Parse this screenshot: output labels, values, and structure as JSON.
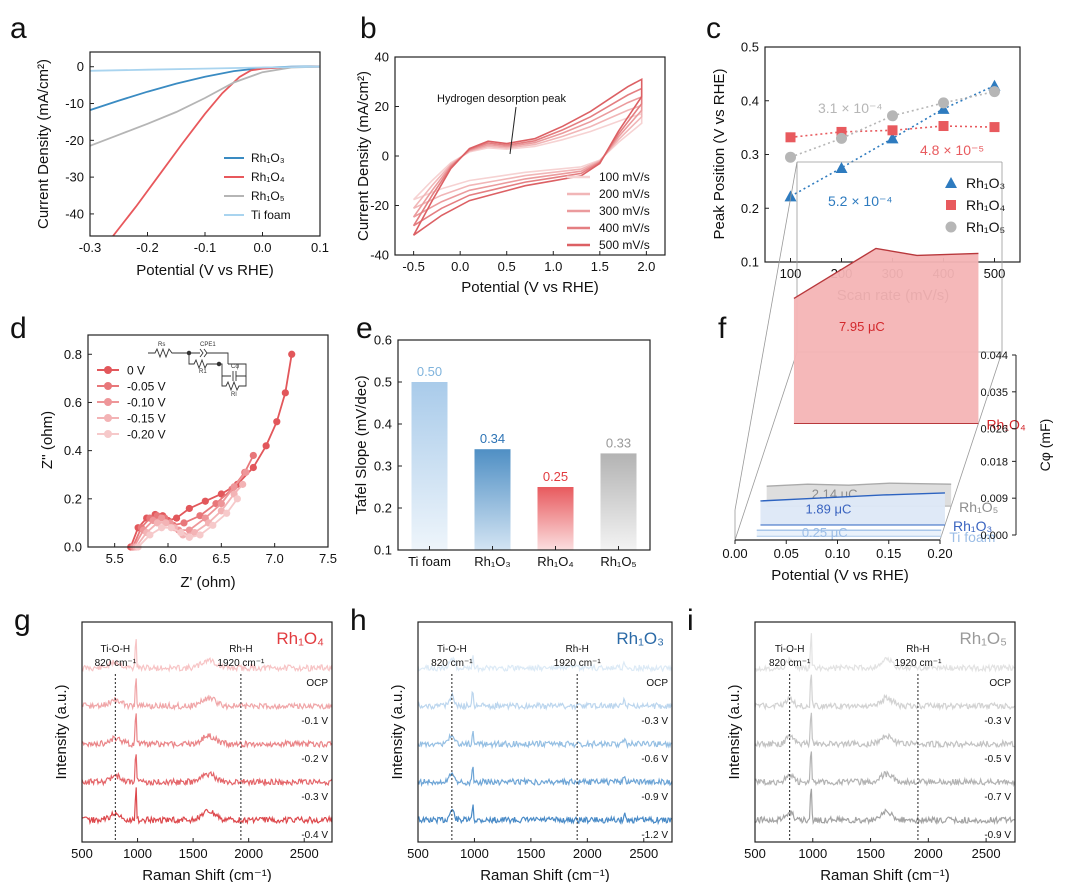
{
  "chart_data": [
    {
      "id": "a",
      "letter": "a",
      "type": "line",
      "xlabel": "Potential (V vs RHE)",
      "ylabel": "Current Density (mA/cm²)",
      "xlim": [
        -0.3,
        0.1
      ],
      "ylim": [
        -46,
        4
      ],
      "xticks": [
        -0.3,
        -0.2,
        -0.1,
        0.0,
        0.1
      ],
      "xtick_labels": [
        "-0.3",
        "-0.2",
        "-0.1",
        "0.0",
        "0.1"
      ],
      "yticks": [
        0,
        -10,
        -20,
        -30,
        -40
      ],
      "ytick_labels": [
        "0",
        "-10",
        "-20",
        "-30",
        "-40"
      ],
      "legend_position": "bottom-right",
      "series": [
        {
          "name": "Rh₁O₃",
          "color": "#3a8bc2",
          "x": [
            -0.3,
            -0.25,
            -0.2,
            -0.15,
            -0.1,
            -0.05,
            0.0,
            0.05,
            0.1
          ],
          "y": [
            -11.8,
            -9.2,
            -6.8,
            -4.6,
            -2.7,
            -1.2,
            -0.3,
            0.0,
            0.1
          ]
        },
        {
          "name": "Rh₁O₄",
          "color": "#e8585c",
          "x": [
            -0.26,
            -0.22,
            -0.18,
            -0.14,
            -0.1,
            -0.07,
            -0.04,
            -0.02,
            0.0,
            0.05,
            0.1
          ],
          "y": [
            -46,
            -38,
            -29.5,
            -21,
            -12.8,
            -7.2,
            -2.8,
            -1.0,
            -0.5,
            -0.1,
            0.0
          ]
        },
        {
          "name": "Rh₁O₅",
          "color": "#b5b5b5",
          "x": [
            -0.3,
            -0.25,
            -0.2,
            -0.15,
            -0.1,
            -0.05,
            0.0,
            0.05,
            0.1
          ],
          "y": [
            -21.5,
            -18.5,
            -15.5,
            -12.3,
            -8.5,
            -4.3,
            -1.5,
            -0.2,
            0.0
          ]
        },
        {
          "name": "Ti foam",
          "color": "#a9d4ef",
          "x": [
            -0.3,
            -0.2,
            -0.1,
            0.0,
            0.1
          ],
          "y": [
            -1.1,
            -0.8,
            -0.5,
            -0.2,
            0.0
          ]
        }
      ]
    },
    {
      "id": "b",
      "letter": "b",
      "type": "line",
      "xlabel": "Potential (V vs RHE)",
      "ylabel": "Current Density (mA/cm²)",
      "xlim": [
        -0.7,
        2.2
      ],
      "ylim": [
        -40,
        40
      ],
      "xticks": [
        -0.5,
        0.0,
        0.5,
        1.0,
        1.5,
        2.0
      ],
      "xtick_labels": [
        "-0.5",
        "0.0",
        "0.5",
        "1.0",
        "1.5",
        "2.0"
      ],
      "yticks": [
        -40,
        -20,
        0,
        20,
        40
      ],
      "ytick_labels": [
        "-40",
        "-20",
        "0",
        "20",
        "40"
      ],
      "annotation": "Hydrogen desorption peak",
      "legend_position": "bottom-right",
      "series": [
        {
          "name": "100 mV/s",
          "color": "#f6d2d2",
          "scale": 0.55
        },
        {
          "name": "200 mV/s",
          "color": "#f1b6b7",
          "scale": 0.66
        },
        {
          "name": "300 mV/s",
          "color": "#eb9b9d",
          "scale": 0.77
        },
        {
          "name": "400 mV/s",
          "color": "#e47e81",
          "scale": 0.88
        },
        {
          "name": "500 mV/s",
          "color": "#dc6064",
          "scale": 1.0
        }
      ]
    },
    {
      "id": "c",
      "letter": "c",
      "type": "scatter",
      "xlabel": "Scan rate (mV/s)",
      "ylabel": "Peak Position (V vs RHE)",
      "xlim": [
        50,
        550
      ],
      "ylim": [
        0.1,
        0.5
      ],
      "xticks": [
        100,
        200,
        300,
        400,
        500
      ],
      "xtick_labels": [
        "100",
        "200",
        "300",
        "400",
        "500"
      ],
      "yticks": [
        0.1,
        0.2,
        0.3,
        0.4,
        0.5
      ],
      "ytick_labels": [
        "0.1",
        "0.2",
        "0.3",
        "0.4",
        "0.5"
      ],
      "legend_position": "bottom-right",
      "x": [
        100,
        200,
        300,
        400,
        500
      ],
      "series": [
        {
          "name": "Rh₁O₃",
          "color": "#2e7bbf",
          "marker": "triangle",
          "y": [
            0.222,
            0.275,
            0.33,
            0.385,
            0.428
          ],
          "slope": "5.2 × 10⁻⁴"
        },
        {
          "name": "Rh₁O₄",
          "color": "#e85a5e",
          "marker": "square",
          "y": [
            0.332,
            0.342,
            0.345,
            0.353,
            0.351
          ],
          "slope": "4.8 × 10⁻⁵"
        },
        {
          "name": "Rh₁O₅",
          "color": "#b6b6b6",
          "marker": "circle",
          "y": [
            0.295,
            0.33,
            0.372,
            0.396,
            0.417
          ],
          "slope": "3.1 × 10⁻⁴"
        }
      ]
    },
    {
      "id": "d",
      "letter": "d",
      "type": "line",
      "xlabel": "Z' (ohm)",
      "ylabel": "Z'' (ohm)",
      "xlim": [
        5.25,
        7.5
      ],
      "ylim": [
        0.0,
        0.88
      ],
      "xticks": [
        5.5,
        6.0,
        6.5,
        7.0,
        7.5
      ],
      "xtick_labels": [
        "5.5",
        "6.0",
        "6.5",
        "7.0",
        "7.5"
      ],
      "yticks": [
        0.0,
        0.2,
        0.4,
        0.6,
        0.8
      ],
      "ytick_labels": [
        "0.0",
        "0.2",
        "0.4",
        "0.6",
        "0.8"
      ],
      "circuit_labels": [
        "Rs",
        "CPE1",
        "R1",
        "Cφ",
        "Rl"
      ],
      "legend_position": "top-left",
      "series": [
        {
          "name": "0 V",
          "color": "#e2575b",
          "x": [
            5.65,
            5.72,
            5.8,
            5.88,
            5.95,
            6.0,
            6.08,
            6.2,
            6.35,
            6.5,
            6.65,
            6.8,
            6.92,
            7.02,
            7.1,
            7.16
          ],
          "y": [
            0.0,
            0.08,
            0.12,
            0.135,
            0.13,
            0.11,
            0.12,
            0.16,
            0.19,
            0.22,
            0.26,
            0.33,
            0.42,
            0.52,
            0.64,
            0.8
          ]
        },
        {
          "name": "-0.05 V",
          "color": "#e8777a",
          "x": [
            5.67,
            5.75,
            5.83,
            5.9,
            5.97,
            6.05,
            6.15,
            6.3,
            6.45,
            6.6,
            6.72,
            6.8
          ],
          "y": [
            0.0,
            0.08,
            0.12,
            0.13,
            0.12,
            0.09,
            0.1,
            0.13,
            0.18,
            0.24,
            0.31,
            0.38
          ]
        },
        {
          "name": "-0.10 V",
          "color": "#ee9699",
          "x": [
            5.68,
            5.77,
            5.86,
            5.94,
            6.02,
            6.1,
            6.2,
            6.35,
            6.5,
            6.62,
            6.73
          ],
          "y": [
            0.0,
            0.07,
            0.11,
            0.12,
            0.1,
            0.07,
            0.07,
            0.12,
            0.18,
            0.25,
            0.31
          ]
        },
        {
          "name": "-0.15 V",
          "color": "#f3b3b5",
          "x": [
            5.7,
            5.8,
            5.9,
            5.98,
            6.06,
            6.14,
            6.25,
            6.38,
            6.5,
            6.62,
            6.7
          ],
          "y": [
            0.0,
            0.06,
            0.1,
            0.1,
            0.08,
            0.05,
            0.06,
            0.1,
            0.15,
            0.22,
            0.26
          ]
        },
        {
          "name": "-0.20 V",
          "color": "#f6c9ca",
          "x": [
            5.72,
            5.83,
            5.94,
            6.03,
            6.12,
            6.2,
            6.3,
            6.42,
            6.55,
            6.65
          ],
          "y": [
            0.0,
            0.05,
            0.08,
            0.08,
            0.06,
            0.04,
            0.05,
            0.09,
            0.14,
            0.2
          ]
        }
      ]
    },
    {
      "id": "e",
      "letter": "e",
      "type": "bar",
      "xlabel": "",
      "ylabel": "Tafel Slope (mV/dec)",
      "ylim": [
        0.1,
        0.6
      ],
      "yticks": [
        0.1,
        0.2,
        0.3,
        0.4,
        0.5,
        0.6
      ],
      "ytick_labels": [
        "0.1",
        "0.2",
        "0.3",
        "0.4",
        "0.5",
        "0.6"
      ],
      "categories": [
        "Ti foam",
        "Rh₁O₃",
        "Rh₁O₄",
        "Rh₁O₅"
      ],
      "values": [
        0.5,
        0.34,
        0.25,
        0.33
      ],
      "value_labels": [
        "0.50",
        "0.34",
        "0.25",
        "0.33"
      ],
      "colors_top": [
        "#a9cbea",
        "#4f8fc4",
        "#e85a5e",
        "#b3b3b3"
      ],
      "colors_bottom": [
        "#eef5fb",
        "#d3e4f3",
        "#fbdedf",
        "#f3f3f3"
      ],
      "label_colors": [
        "#7fb3dc",
        "#2e74b5",
        "#e23c40",
        "#999999"
      ]
    },
    {
      "id": "f",
      "letter": "f",
      "type": "area",
      "xlabel": "Potential (V vs RHE)",
      "ylabel": "Cφ (mF)",
      "xlim": [
        0.0,
        0.2
      ],
      "xticks": [
        0.0,
        0.05,
        0.1,
        0.15,
        0.2
      ],
      "xtick_labels": [
        "0.00",
        "0.05",
        "0.10",
        "0.15",
        "0.20"
      ],
      "zticks": [
        0.0,
        0.009,
        0.018,
        0.026,
        0.035,
        0.044
      ],
      "ztick_labels": [
        "0.000",
        "0.009",
        "0.018",
        "0.026",
        "0.035",
        "0.044"
      ],
      "series": [
        {
          "name": "Ti foam",
          "charge": "0.25 μC",
          "color": "#a9c7ea",
          "fill": "#e9f1fb",
          "label_color": "#9bbde6"
        },
        {
          "name": "Rh₁O₃",
          "charge": "1.89 μC",
          "color": "#2d63c0",
          "fill": "#dde8f7",
          "label_color": "#3a64c0"
        },
        {
          "name": "Rh₁O₅",
          "charge": "2.14 μC",
          "color": "#aaaaaa",
          "fill": "#dcdcdc",
          "label_color": "#8d8d8d"
        },
        {
          "name": "Rh₁O₄",
          "charge": "7.95 μC",
          "color": "#b8383c",
          "fill": "#f4b4b5",
          "label_color": "#d3282c"
        }
      ]
    },
    {
      "id": "g",
      "letter": "g",
      "type": "line",
      "title": "Rh₁O₄",
      "title_color": "#e23c40",
      "xlabel": "Raman Shift (cm⁻¹)",
      "ylabel": "Intensity (a.u.)",
      "xlim": [
        500,
        2750
      ],
      "xticks": [
        500,
        1000,
        1500,
        2000,
        2500
      ],
      "xtick_labels": [
        "500",
        "1000",
        "1500",
        "2000",
        "2500"
      ],
      "markers": [
        {
          "name": "Ti-O-H",
          "value": "820 cm⁻¹",
          "x": 800
        },
        {
          "name": "Rh-H",
          "value": "1920 cm⁻¹",
          "x": 1930
        }
      ],
      "series": [
        {
          "name": "OCP",
          "color": "#f7c4c5"
        },
        {
          "name": "-0.1 V",
          "color": "#f0a6a8"
        },
        {
          "name": "-0.2 V",
          "color": "#ea8487"
        },
        {
          "name": "-0.3 V",
          "color": "#e46569"
        },
        {
          "name": "-0.4 V",
          "color": "#dd484c"
        }
      ]
    },
    {
      "id": "h",
      "letter": "h",
      "type": "line",
      "title": "Rh₁O₃",
      "title_color": "#2b6aa7",
      "xlabel": "Raman Shift (cm⁻¹)",
      "ylabel": "Intensity (a.u.)",
      "xlim": [
        500,
        2750
      ],
      "xticks": [
        500,
        1000,
        1500,
        2000,
        2500
      ],
      "xtick_labels": [
        "500",
        "1000",
        "1500",
        "2000",
        "2500"
      ],
      "markers": [
        {
          "name": "Ti-O-H",
          "value": "820 cm⁻¹",
          "x": 800
        },
        {
          "name": "Rh-H",
          "value": "1920 cm⁻¹",
          "x": 1910
        }
      ],
      "series": [
        {
          "name": "OCP",
          "color": "#dceaf6"
        },
        {
          "name": "-0.3 V",
          "color": "#bcd6ee"
        },
        {
          "name": "-0.6 V",
          "color": "#95bfe3"
        },
        {
          "name": "-0.9 V",
          "color": "#6ea5d6"
        },
        {
          "name": "-1.2 V",
          "color": "#4a8bc7"
        }
      ]
    },
    {
      "id": "i",
      "letter": "i",
      "type": "line",
      "title": "Rh₁O₅",
      "title_color": "#9a9a9a",
      "xlabel": "Raman Shift (cm⁻¹)",
      "ylabel": "Intensity (a.u.)",
      "xlim": [
        500,
        2750
      ],
      "xticks": [
        500,
        1000,
        1500,
        2000,
        2500
      ],
      "xtick_labels": [
        "500",
        "1000",
        "1500",
        "2000",
        "2500"
      ],
      "markers": [
        {
          "name": "Ti-O-H",
          "value": "820 cm⁻¹",
          "x": 800
        },
        {
          "name": "Rh-H",
          "value": "1920 cm⁻¹",
          "x": 1910
        }
      ],
      "series": [
        {
          "name": "OCP",
          "color": "#e2e2e2"
        },
        {
          "name": "-0.3 V",
          "color": "#d2d2d2"
        },
        {
          "name": "-0.5 V",
          "color": "#c2c2c2"
        },
        {
          "name": "-0.7 V",
          "color": "#b3b3b3"
        },
        {
          "name": "-0.9 V",
          "color": "#a3a3a3"
        }
      ]
    }
  ]
}
